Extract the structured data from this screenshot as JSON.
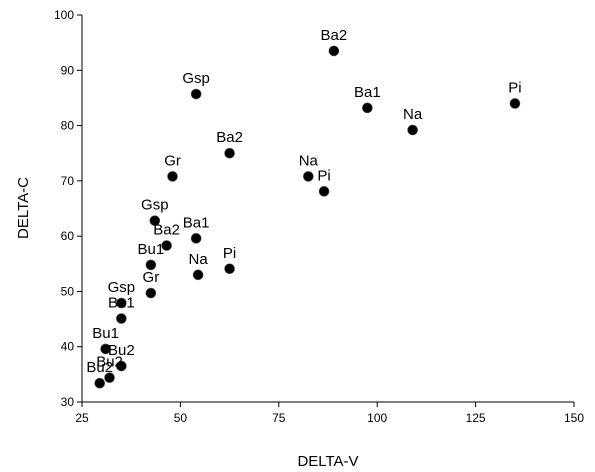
{
  "chart_data": {
    "type": "scatter",
    "xlabel": "DELTA-V",
    "ylabel": "DELTA-C",
    "xlim": [
      25,
      150
    ],
    "ylim": [
      30,
      100
    ],
    "xticks": [
      25,
      50,
      75,
      100,
      125,
      150
    ],
    "yticks": [
      30,
      40,
      50,
      60,
      70,
      80,
      90,
      100
    ],
    "grid": false,
    "legend": "none",
    "marker_color": "#000000",
    "points": [
      {
        "label": "Ba2",
        "x": 89,
        "y": 93.5
      },
      {
        "label": "Gsp",
        "x": 54,
        "y": 85.7
      },
      {
        "label": "Ba1",
        "x": 97.5,
        "y": 83.2
      },
      {
        "label": "Pi",
        "x": 135,
        "y": 84.0
      },
      {
        "label": "Na",
        "x": 109,
        "y": 79.2
      },
      {
        "label": "Ba2",
        "x": 62.5,
        "y": 75.0
      },
      {
        "label": "Gr",
        "x": 48,
        "y": 70.8
      },
      {
        "label": "Na",
        "x": 82.5,
        "y": 70.8
      },
      {
        "label": "Pi",
        "x": 86.5,
        "y": 68.1
      },
      {
        "label": "Gsp",
        "x": 43.5,
        "y": 62.8
      },
      {
        "label": "Ba1",
        "x": 54,
        "y": 59.6
      },
      {
        "label": "Ba2",
        "x": 46.5,
        "y": 58.3
      },
      {
        "label": "Bu1",
        "x": 42.5,
        "y": 54.8
      },
      {
        "label": "Pi",
        "x": 62.5,
        "y": 54.1
      },
      {
        "label": "Na",
        "x": 54.5,
        "y": 53.0
      },
      {
        "label": "Gr",
        "x": 42.5,
        "y": 49.7
      },
      {
        "label": "Gsp",
        "x": 35,
        "y": 47.9
      },
      {
        "label": "Bu1",
        "x": 35,
        "y": 45.1
      },
      {
        "label": "Bu1",
        "x": 31,
        "y": 39.6
      },
      {
        "label": "Bu2",
        "x": 35,
        "y": 36.5
      },
      {
        "label": "Bu2",
        "x": 32,
        "y": 34.4
      },
      {
        "label": "Bu2",
        "x": 29.5,
        "y": 33.4
      }
    ]
  }
}
